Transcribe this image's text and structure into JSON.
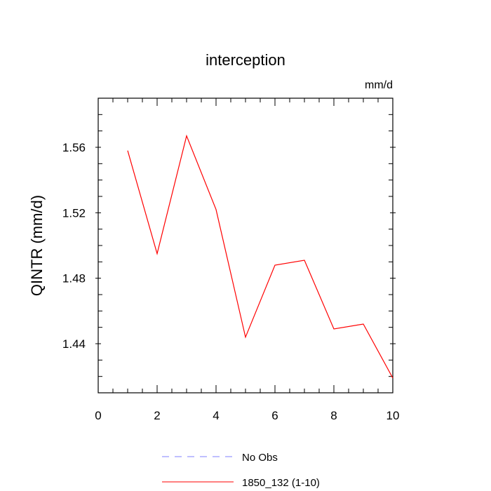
{
  "chart_data": {
    "type": "line",
    "title": "interception",
    "units_label": "mm/d",
    "ylabel": "QINTR  (mm/d)",
    "xlabel": "",
    "xlim": [
      0,
      10
    ],
    "ylim": [
      1.41,
      1.59
    ],
    "x_ticks": [
      0,
      2,
      4,
      6,
      8,
      10
    ],
    "y_ticks": [
      1.44,
      1.48,
      1.52,
      1.56
    ],
    "grid": false,
    "legend_placement": "bottom",
    "series": [
      {
        "name": "1850_132 (1-10)",
        "color": "#ff0000",
        "dash": "solid",
        "x": [
          1,
          2,
          3,
          4,
          5,
          6,
          7,
          8,
          9,
          10
        ],
        "y": [
          1.558,
          1.495,
          1.567,
          1.522,
          1.444,
          1.488,
          1.491,
          1.449,
          1.452,
          1.419
        ]
      }
    ],
    "legend": [
      {
        "label": "No Obs",
        "color": "#8080ff",
        "dash": "dashed"
      },
      {
        "label": "1850_132 (1-10)",
        "color": "#ff0000",
        "dash": "solid"
      }
    ]
  }
}
